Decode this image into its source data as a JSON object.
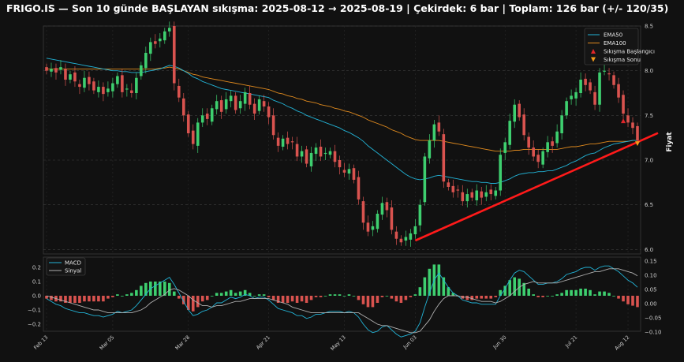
{
  "title": "FRIGO.IS — Son 10 günde BAŞLAYAN sıkışma: 2025-08-12 → 2025-08-19 | Çekirdek: 6 bar | Toplam: 126 bar (+/- 120/35)",
  "colors": {
    "background": "#111111",
    "up": "#3ecf6f",
    "down": "#d9534f",
    "ema50": "#22b3d6",
    "ema100": "#e08a1e",
    "macd": "#22b3d6",
    "signal": "#b0b0b0",
    "trendline": "#ff1a1a",
    "squeeze_start": "#e0262a",
    "squeeze_end": "#f29a1a"
  },
  "price_axis_label": "Fiyat",
  "price_ticks": [
    "6.0",
    "6.5",
    "7.0",
    "7.5",
    "8.0",
    "8.5"
  ],
  "macd_left_ticks": [
    "0.2",
    "0.1",
    "0.0",
    "−0.1",
    "−0.2"
  ],
  "macd_right_ticks": [
    "0.15",
    "0.10",
    "0.05",
    "0.00",
    "−0.05",
    "−0.10"
  ],
  "date_ticks": [
    "Feb 13",
    "Mar 05",
    "Mar 28",
    "Apr 21",
    "May 13",
    "Jun 03",
    "Jun 30",
    "Jul 21",
    "Aug 12"
  ],
  "legend_price": [
    "EMA50",
    "EMA100",
    "Sıkışma Başlangıcı",
    "Sıkışma Sonu"
  ],
  "legend_macd": [
    "MACD",
    "Sinyal"
  ],
  "chart_data": {
    "type": "candlestick",
    "x_range": [
      "2025-02-13",
      "2025-08-19"
    ],
    "ylim": [
      5.95,
      8.5
    ],
    "squeeze_start": "2025-08-12",
    "squeeze_end": "2025-08-19",
    "trendline": {
      "from": [
        6.1,
        78
      ],
      "to": [
        7.25,
        126
      ],
      "note_x_is_bar_index": true
    },
    "close": [
      8.0,
      8.02,
      7.98,
      8.04,
      7.9,
      7.96,
      7.88,
      7.82,
      7.92,
      7.85,
      7.78,
      7.82,
      7.74,
      7.8,
      7.86,
      7.94,
      7.76,
      7.8,
      7.75,
      7.92,
      8.06,
      8.2,
      8.32,
      8.3,
      8.36,
      8.44,
      8.48,
      7.86,
      7.7,
      7.5,
      7.3,
      7.18,
      7.42,
      7.5,
      7.46,
      7.58,
      7.66,
      7.54,
      7.68,
      7.72,
      7.56,
      7.66,
      7.76,
      7.62,
      7.52,
      7.68,
      7.6,
      7.48,
      7.28,
      7.16,
      7.24,
      7.18,
      7.2,
      7.04,
      7.1,
      6.96,
      7.08,
      7.14,
      7.04,
      7.08,
      7.1,
      6.98,
      6.92,
      6.86,
      6.9,
      6.78,
      6.56,
      6.3,
      6.2,
      6.26,
      6.4,
      6.52,
      6.44,
      6.22,
      6.12,
      6.08,
      6.14,
      6.18,
      6.26,
      6.5,
      7.04,
      7.22,
      7.4,
      7.32,
      6.76,
      6.7,
      6.64,
      6.66,
      6.54,
      6.62,
      6.58,
      6.66,
      6.58,
      6.64,
      6.62,
      6.66,
      7.06,
      7.2,
      7.44,
      7.62,
      7.48,
      7.28,
      7.14,
      7.04,
      6.98,
      7.1,
      7.2,
      7.16,
      7.32,
      7.5,
      7.66,
      7.72,
      7.76,
      7.9,
      7.84,
      7.78,
      7.62,
      7.98,
      8.0,
      7.96,
      7.84,
      7.7,
      7.52,
      7.42,
      7.36,
      7.22
    ],
    "ema50": [
      8.14,
      8.13,
      8.12,
      8.11,
      8.1,
      8.09,
      8.08,
      8.07,
      8.06,
      8.05,
      8.04,
      8.03,
      8.02,
      8.01,
      8.0,
      8.0,
      7.99,
      7.99,
      7.98,
      7.98,
      7.98,
      7.99,
      8.0,
      8.01,
      8.02,
      8.04,
      8.06,
      8.05,
      8.03,
      8.0,
      7.97,
      7.93,
      7.91,
      7.88,
      7.86,
      7.84,
      7.82,
      7.8,
      7.79,
      7.78,
      7.77,
      7.76,
      7.75,
      7.74,
      7.73,
      7.72,
      7.71,
      7.7,
      7.67,
      7.65,
      7.63,
      7.6,
      7.58,
      7.55,
      7.53,
      7.5,
      7.48,
      7.46,
      7.44,
      7.42,
      7.4,
      7.38,
      7.36,
      7.33,
      7.31,
      7.28,
      7.25,
      7.21,
      7.16,
      7.12,
      7.08,
      7.04,
      7.0,
      6.96,
      6.92,
      6.88,
      6.84,
      6.81,
      6.79,
      6.78,
      6.79,
      6.8,
      6.82,
      6.83,
      6.82,
      6.81,
      6.8,
      6.79,
      6.78,
      6.77,
      6.76,
      6.76,
      6.75,
      6.75,
      6.74,
      6.74,
      6.75,
      6.77,
      6.79,
      6.82,
      6.84,
      6.85,
      6.86,
      6.86,
      6.87,
      6.87,
      6.88,
      6.88,
      6.9,
      6.92,
      6.94,
      6.97,
      6.99,
      7.02,
      7.05,
      7.07,
      7.08,
      7.11,
      7.14,
      7.16,
      7.18,
      7.19,
      7.2,
      7.21,
      7.22,
      7.22
    ],
    "ema100": [
      8.02,
      8.02,
      8.02,
      8.02,
      8.02,
      8.02,
      8.02,
      8.02,
      8.02,
      8.02,
      8.02,
      8.02,
      8.02,
      8.02,
      8.02,
      8.02,
      8.02,
      8.02,
      8.02,
      8.02,
      8.02,
      8.02,
      8.02,
      8.02,
      8.03,
      8.03,
      8.04,
      8.03,
      8.02,
      8.0,
      7.98,
      7.96,
      7.95,
      7.93,
      7.92,
      7.91,
      7.9,
      7.89,
      7.88,
      7.87,
      7.86,
      7.85,
      7.84,
      7.83,
      7.82,
      7.81,
      7.8,
      7.79,
      7.77,
      7.75,
      7.74,
      7.72,
      7.71,
      7.69,
      7.68,
      7.66,
      7.65,
      7.64,
      7.62,
      7.61,
      7.6,
      7.58,
      7.57,
      7.55,
      7.54,
      7.52,
      7.5,
      7.48,
      7.45,
      7.43,
      7.41,
      7.39,
      7.37,
      7.34,
      7.32,
      7.3,
      7.27,
      7.25,
      7.23,
      7.22,
      7.22,
      7.22,
      7.22,
      7.22,
      7.21,
      7.2,
      7.19,
      7.18,
      7.17,
      7.16,
      7.15,
      7.14,
      7.13,
      7.12,
      7.11,
      7.1,
      7.1,
      7.1,
      7.1,
      7.11,
      7.11,
      7.12,
      7.12,
      7.12,
      7.12,
      7.12,
      7.12,
      7.12,
      7.12,
      7.13,
      7.14,
      7.15,
      7.15,
      7.16,
      7.17,
      7.18,
      7.18,
      7.19,
      7.2,
      7.21,
      7.21,
      7.21,
      7.21,
      7.21,
      7.22,
      7.22
    ],
    "macd": [
      -0.02,
      -0.04,
      -0.06,
      -0.07,
      -0.09,
      -0.1,
      -0.11,
      -0.12,
      -0.12,
      -0.13,
      -0.14,
      -0.14,
      -0.15,
      -0.14,
      -0.13,
      -0.11,
      -0.12,
      -0.11,
      -0.1,
      -0.07,
      -0.03,
      0.01,
      0.05,
      0.07,
      0.09,
      0.11,
      0.13,
      0.08,
      0.02,
      -0.04,
      -0.1,
      -0.14,
      -0.13,
      -0.11,
      -0.1,
      -0.08,
      -0.05,
      -0.05,
      -0.03,
      -0.01,
      -0.02,
      -0.01,
      0.01,
      0.0,
      -0.02,
      -0.01,
      -0.01,
      -0.03,
      -0.06,
      -0.09,
      -0.1,
      -0.11,
      -0.12,
      -0.14,
      -0.14,
      -0.16,
      -0.15,
      -0.13,
      -0.13,
      -0.12,
      -0.11,
      -0.11,
      -0.11,
      -0.12,
      -0.11,
      -0.12,
      -0.15,
      -0.2,
      -0.24,
      -0.26,
      -0.25,
      -0.22,
      -0.21,
      -0.24,
      -0.27,
      -0.29,
      -0.28,
      -0.27,
      -0.25,
      -0.19,
      -0.08,
      0.02,
      0.11,
      0.16,
      0.11,
      0.06,
      0.02,
      0.0,
      -0.03,
      -0.04,
      -0.05,
      -0.05,
      -0.06,
      -0.06,
      -0.06,
      -0.06,
      0.0,
      0.05,
      0.11,
      0.16,
      0.18,
      0.17,
      0.14,
      0.11,
      0.08,
      0.08,
      0.09,
      0.09,
      0.1,
      0.12,
      0.15,
      0.16,
      0.17,
      0.19,
      0.2,
      0.2,
      0.18,
      0.2,
      0.21,
      0.21,
      0.19,
      0.17,
      0.14,
      0.11,
      0.09,
      0.06
    ],
    "signal": [
      0.0,
      -0.01,
      -0.02,
      -0.03,
      -0.04,
      -0.05,
      -0.06,
      -0.07,
      -0.08,
      -0.09,
      -0.1,
      -0.1,
      -0.11,
      -0.12,
      -0.12,
      -0.12,
      -0.12,
      -0.12,
      -0.12,
      -0.11,
      -0.1,
      -0.08,
      -0.05,
      -0.03,
      -0.01,
      0.01,
      0.04,
      0.05,
      0.04,
      0.02,
      -0.0,
      -0.03,
      -0.05,
      -0.07,
      -0.07,
      -0.08,
      -0.07,
      -0.07,
      -0.06,
      -0.05,
      -0.04,
      -0.04,
      -0.03,
      -0.02,
      -0.02,
      -0.02,
      -0.02,
      -0.02,
      -0.03,
      -0.04,
      -0.05,
      -0.06,
      -0.08,
      -0.09,
      -0.1,
      -0.11,
      -0.12,
      -0.12,
      -0.12,
      -0.12,
      -0.12,
      -0.12,
      -0.12,
      -0.12,
      -0.12,
      -0.12,
      -0.12,
      -0.14,
      -0.16,
      -0.18,
      -0.2,
      -0.21,
      -0.21,
      -0.22,
      -0.23,
      -0.24,
      -0.25,
      -0.26,
      -0.26,
      -0.25,
      -0.21,
      -0.17,
      -0.11,
      -0.06,
      -0.02,
      -0.0,
      0.0,
      0.0,
      -0.01,
      -0.01,
      -0.02,
      -0.03,
      -0.04,
      -0.04,
      -0.04,
      -0.05,
      -0.04,
      -0.02,
      0.0,
      0.03,
      0.06,
      0.08,
      0.09,
      0.1,
      0.09,
      0.09,
      0.09,
      0.09,
      0.09,
      0.1,
      0.11,
      0.12,
      0.13,
      0.14,
      0.15,
      0.16,
      0.17,
      0.17,
      0.18,
      0.19,
      0.19,
      0.19,
      0.18,
      0.17,
      0.16,
      0.14
    ]
  }
}
